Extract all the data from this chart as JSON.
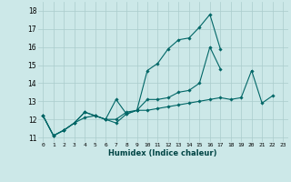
{
  "xlabel": "Humidex (Indice chaleur)",
  "background_color": "#cce8e8",
  "line_color": "#006666",
  "grid_color": "#aacccc",
  "xlim": [
    -0.5,
    23.5
  ],
  "ylim": [
    10.75,
    18.5
  ],
  "xticks": [
    0,
    1,
    2,
    3,
    4,
    5,
    6,
    7,
    8,
    9,
    10,
    11,
    12,
    13,
    14,
    15,
    16,
    17,
    18,
    19,
    20,
    21,
    22,
    23
  ],
  "yticks": [
    11,
    12,
    13,
    14,
    15,
    16,
    17,
    18
  ],
  "series": [
    [
      12.2,
      11.1,
      11.4,
      11.8,
      12.1,
      12.2,
      12.0,
      11.8,
      12.3,
      12.5,
      14.7,
      15.1,
      15.9,
      16.4,
      16.5,
      17.1,
      17.8,
      15.9,
      null,
      null,
      null,
      null,
      null,
      null
    ],
    [
      12.2,
      11.1,
      11.4,
      11.8,
      12.4,
      12.2,
      12.0,
      12.0,
      12.4,
      12.5,
      13.1,
      13.1,
      13.2,
      13.5,
      13.6,
      14.0,
      16.0,
      14.8,
      null,
      null,
      null,
      null,
      null,
      null
    ],
    [
      12.2,
      11.1,
      11.4,
      11.8,
      12.4,
      12.2,
      12.0,
      13.1,
      12.3,
      12.5,
      12.5,
      12.6,
      12.7,
      12.8,
      12.9,
      13.0,
      13.1,
      13.2,
      13.1,
      13.2,
      14.7,
      12.9,
      13.3,
      null
    ]
  ]
}
